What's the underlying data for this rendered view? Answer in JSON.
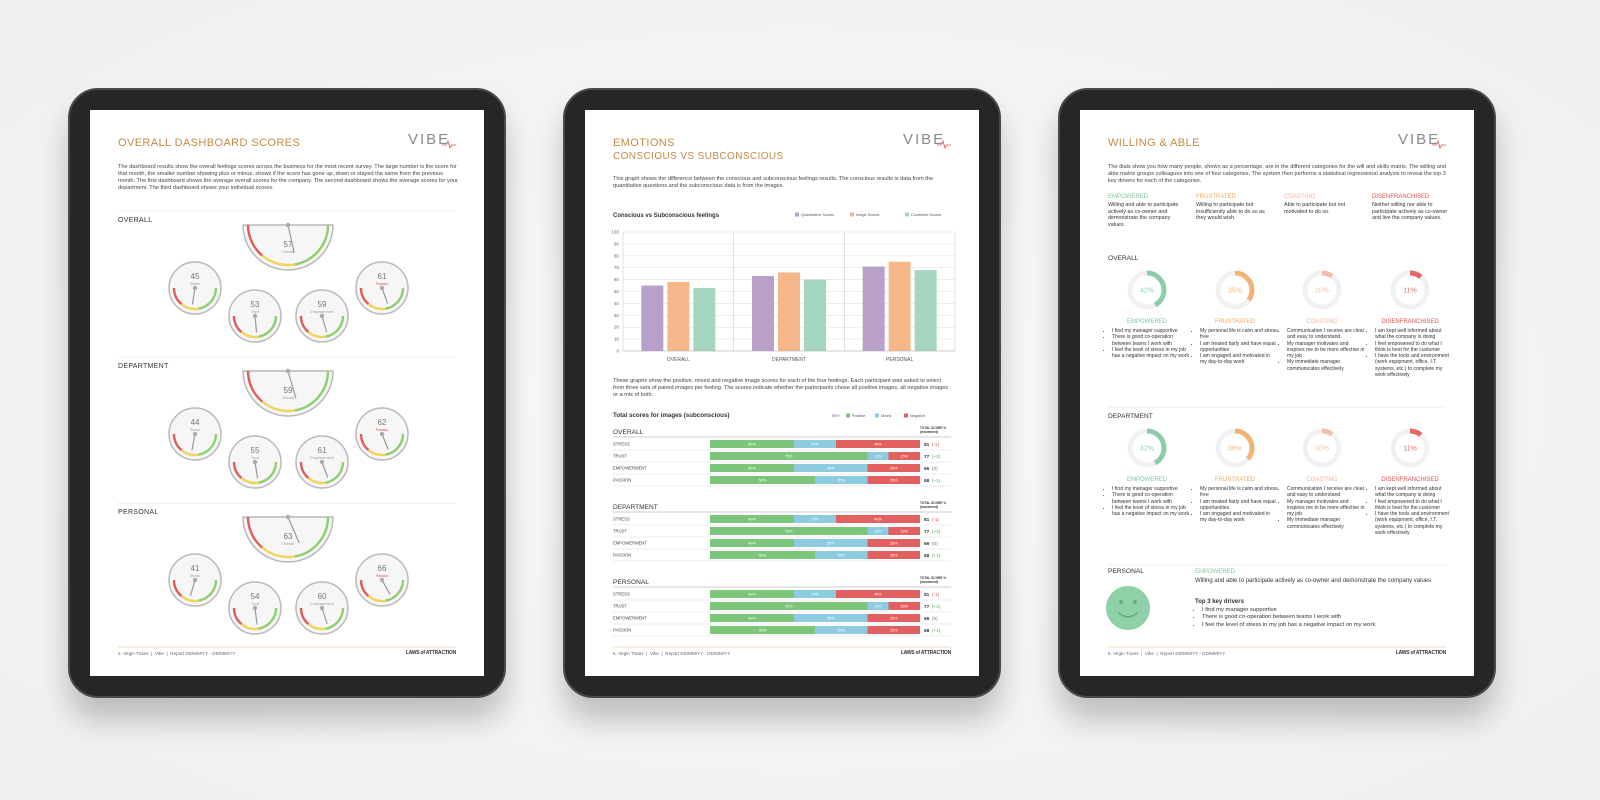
{
  "dashboard": {
    "title": "OVERALL DASHBOARD SCORES",
    "logo": "VIBE",
    "intro": "The dashboard results show the overall feelings scores across the business for the most recent survey. The large number is the score for that month, the smaller number showing plus or minus, shows if the score has gone up, down or stayed the same from the previous month. The first dashboard shows the average overall scores for the company. The second dashboard shows the average scores for your department. The third dashboard shows your individual scores.",
    "sections": [
      {
        "label": "OVERALL",
        "gauges": [
          {
            "label": "Overall",
            "value": 57
          },
          {
            "label": "Stress",
            "value": 45
          },
          {
            "label": "Trust",
            "value": 53
          },
          {
            "label": "Empowerment",
            "value": 59
          },
          {
            "label": "Passion",
            "value": 61
          }
        ]
      },
      {
        "label": "DEPARTMENT",
        "gauges": [
          {
            "label": "Overall",
            "value": 59
          },
          {
            "label": "Stress",
            "value": 44
          },
          {
            "label": "Trust",
            "value": 55
          },
          {
            "label": "Empowerment",
            "value": 61
          },
          {
            "label": "Passion",
            "value": 62
          }
        ]
      },
      {
        "label": "PERSONAL",
        "gauges": [
          {
            "label": "Overall",
            "value": 63
          },
          {
            "label": "Stress",
            "value": 41
          },
          {
            "label": "Trust",
            "value": 54
          },
          {
            "label": "Empowerment",
            "value": 60
          },
          {
            "label": "Passion",
            "value": 66
          }
        ]
      }
    ],
    "footer": "2. Virgin Trains  |  Vibe  |  Report DD/MM/YY - DD/MM/YY",
    "brand": "LAWS of ATTRACTION"
  },
  "emotions": {
    "title": "EMOTIONS",
    "subtitle": "CONSCIOUS VS SUBCONSCIOUS",
    "logo": "VIBE",
    "intro": "This graph shows the difference between the conscious and subconscious feelings results. The conscious results is data from the quantitative questions and the subconscious data is from the images.",
    "chart": {
      "type": "bar",
      "title": "Conscious vs Subconscious feelings",
      "categories": [
        "OVERALL",
        "DEPARTMENT",
        "PERSONAL"
      ],
      "series": [
        {
          "name": "Quantitative Scores",
          "color": "#b9a0c9",
          "values": [
            55,
            63,
            71
          ]
        },
        {
          "name": "Image Scores",
          "color": "#f5b68a",
          "values": [
            58,
            66,
            75
          ]
        },
        {
          "name": "Combined Scores",
          "color": "#a5d5bf",
          "values": [
            53,
            60,
            68
          ]
        }
      ],
      "ylim": [
        0,
        100
      ],
      "yticks": [
        0,
        10,
        20,
        30,
        40,
        50,
        60,
        70,
        80,
        90,
        100
      ],
      "grid": true
    },
    "intro2": "These graphs show the positive, mixed and negative image scores for each of the four feelings. Each participant was asked to select from three sets of paired images per feeling. The scores indicate whether the participants chose all positive images, all negative images or a mix of both.",
    "tables_title": "Total scores for images (subconscious)",
    "key_label": "KEY:",
    "key": [
      {
        "name": "Positive",
        "color": "#7ec57c"
      },
      {
        "name": "Mixed",
        "color": "#8dcbe0"
      },
      {
        "name": "Negative",
        "color": "#e2605f"
      }
    ],
    "tables": [
      {
        "name": "OVERALL",
        "total_header": "TOTAL SCORE % (movement)",
        "rows": [
          {
            "name": "STRESS",
            "values": [
              40,
              20,
              40
            ],
            "value_labels": [
              "40%",
              "20%",
              "40%"
            ],
            "total": 81,
            "movement": "(-1)"
          },
          {
            "name": "TRUST",
            "values": [
              75,
              10,
              15
            ],
            "value_labels": [
              "75%",
              "10%",
              "15%"
            ],
            "total": 77,
            "movement": "(+2)"
          },
          {
            "name": "EMPOWERMENT",
            "values": [
              40,
              35,
              25
            ],
            "value_labels": [
              "40%",
              "35%",
              "25%"
            ],
            "total": 66,
            "movement": "(0)"
          },
          {
            "name": "PASSION",
            "values": [
              50,
              25,
              25
            ],
            "value_labels": [
              "50%",
              "25%",
              "25%"
            ],
            "total": 68,
            "movement": "(+1)"
          }
        ]
      },
      {
        "name": "DEPARTMENT",
        "total_header": "TOTAL SCORE % (movement)",
        "rows": [
          {
            "name": "STRESS",
            "values": [
              40,
              20,
              40
            ],
            "value_labels": [
              "40%",
              "20%",
              "40%"
            ],
            "total": 81,
            "movement": "(-1)"
          },
          {
            "name": "TRUST",
            "values": [
              75,
              10,
              15
            ],
            "value_labels": [
              "75%",
              "10%",
              "15%"
            ],
            "total": 77,
            "movement": "(+2)"
          },
          {
            "name": "EMPOWERMENT",
            "values": [
              40,
              35,
              25
            ],
            "value_labels": [
              "40%",
              "35%",
              "25%"
            ],
            "total": 66,
            "movement": "(0)"
          },
          {
            "name": "PASSION",
            "values": [
              50,
              25,
              25
            ],
            "value_labels": [
              "50%",
              "25%",
              "25%"
            ],
            "total": 68,
            "movement": "(+1)"
          }
        ]
      },
      {
        "name": "PERSONAL",
        "total_header": "TOTAL SCORE % (movement)",
        "rows": [
          {
            "name": "STRESS",
            "values": [
              40,
              20,
              40
            ],
            "value_labels": [
              "40%",
              "20%",
              "40%"
            ],
            "total": 81,
            "movement": "(-1)"
          },
          {
            "name": "TRUST",
            "values": [
              75,
              10,
              15
            ],
            "value_labels": [
              "75%",
              "10%",
              "15%"
            ],
            "total": 77,
            "movement": "(+2)"
          },
          {
            "name": "EMPOWERMENT",
            "values": [
              40,
              35,
              25
            ],
            "value_labels": [
              "40%",
              "35%",
              "25%"
            ],
            "total": 66,
            "movement": "(0)"
          },
          {
            "name": "PASSION",
            "values": [
              50,
              25,
              25
            ],
            "value_labels": [
              "50%",
              "25%",
              "25%"
            ],
            "total": 68,
            "movement": "(+1)"
          }
        ]
      }
    ],
    "footer": "5. Virgin Trains  |  Vibe  |  Report DD/MM/YY - DD/MM/YY",
    "brand": "LAWS of ATTRACTION"
  },
  "willing": {
    "title": "WILLING & ABLE",
    "logo": "VIBE",
    "intro": "The dials show you how many people, shown as a percentage, are in the different categories for the will and skills matrix. The willing and able matrix groups colleagues into one of four categories. The system then performs a statistical regressional analysis to reveal the top 3 key drivers for each of the categories.",
    "categories": [
      {
        "name": "EMPOWERED",
        "color": "#7cc59b",
        "description": "Willing and able to participate actively as co-owner and demonstrate the company values.",
        "drivers": [
          "I find my manager supportive",
          "There is good co-operation between teams I work with",
          "I feel the level of stress in my job has a negative impact on my work"
        ]
      },
      {
        "name": "FRUSTRATED",
        "color": "#f2a95f",
        "description": "Willing to participate but insufficiently able to do so as they would wish.",
        "drivers": [
          "My personal life is calm and stress free",
          "I am treated fairly and have equal opportunities",
          "I am engaged and motivated in my day-to-day work"
        ]
      },
      {
        "name": "COASTING",
        "color": "#f1b59c",
        "description": "Able to participate but not motivated to do so.",
        "drivers": [
          "Communication I receive are clear and easy to understand",
          "My manager motivates and inspires me to be more effective in my job",
          "My immediate manager communicates effectively"
        ]
      },
      {
        "name": "DISENFRANCHISED",
        "color": "#e0504f",
        "description": "Neither willing nor able to participate actively as co-owner and live the company values.",
        "drivers": [
          "I am kept well informed about what the company is doing",
          "I feel empowered to do what I think is best for the customer",
          "I have the tools and environment (work equipment, office, I.T. systems, etc.) to complete my work effectively"
        ]
      }
    ],
    "sections": [
      {
        "label": "OVERALL",
        "dials": [
          {
            "value": 42,
            "label": "42%"
          },
          {
            "value": 35,
            "label": "35%"
          },
          {
            "value": 10,
            "label": "10%"
          },
          {
            "value": 11,
            "label": "11%"
          }
        ]
      },
      {
        "label": "DEPARTMENT",
        "dials": [
          {
            "value": 42,
            "label": "42%"
          },
          {
            "value": 36,
            "label": "36%"
          },
          {
            "value": 10,
            "label": "10%"
          },
          {
            "value": 11,
            "label": "11%"
          }
        ]
      }
    ],
    "personal": {
      "label": "PERSONAL",
      "category": "EMPOWERED",
      "description": "Willing and able to participate actively as co-owner and demonstrate the company values",
      "drivers_title": "Top 3 key drivers",
      "drivers": [
        "I find my manager supportive",
        "There is good co-operation between teams I work with",
        "I feel the level of stress in my job has a negative impact on my work"
      ]
    },
    "footer": "6. Virgin Trains  |  Vibe  |  Report DD/MM/YY - DD/MM/YY",
    "brand": "LAWS of ATTRACTION"
  }
}
